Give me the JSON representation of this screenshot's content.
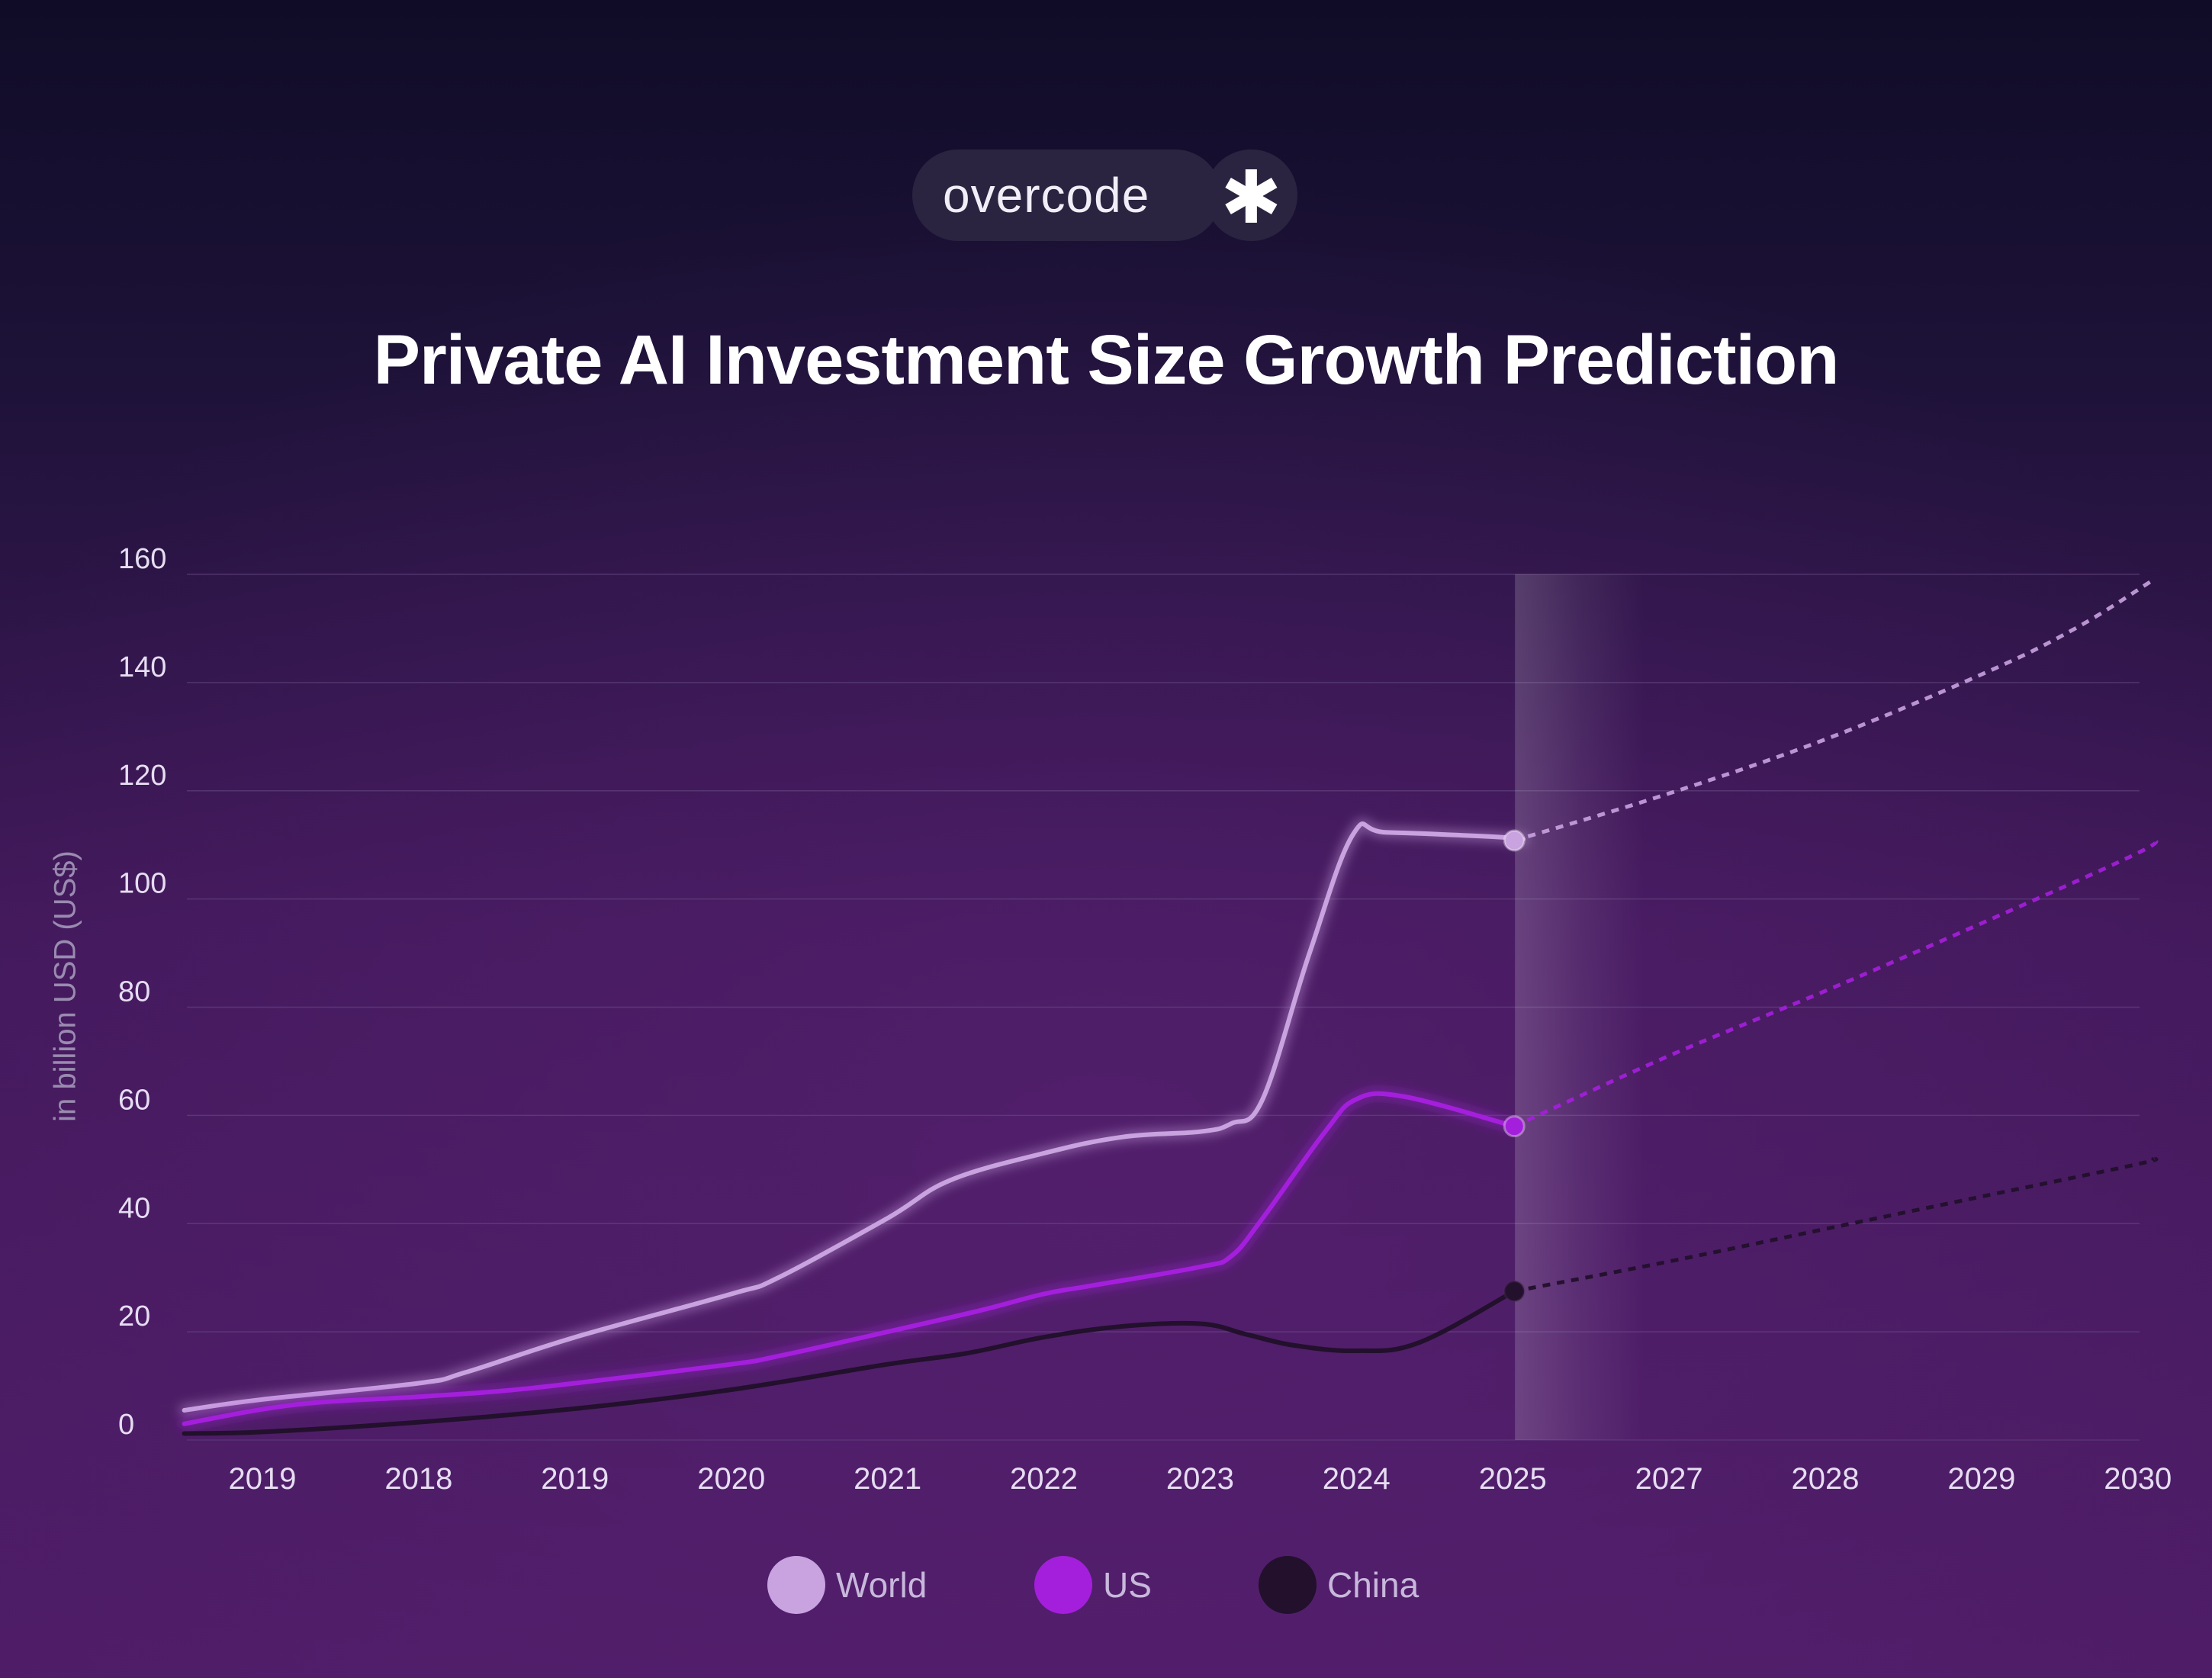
{
  "brand": {
    "name": "overcode",
    "mark": "✱"
  },
  "colors": {
    "world": "#c9a2e0",
    "us": "#a41fdc",
    "china": "#22102c",
    "grid": "#6a4f86",
    "tick": "#e6ddf2"
  },
  "legend": [
    {
      "name": "World",
      "color": "#c9a2e0"
    },
    {
      "name": "US",
      "color": "#a41fdc"
    },
    {
      "name": "China",
      "color": "#22102c"
    }
  ],
  "chart_data": {
    "type": "line",
    "title": "Private AI Investment Size Growth Prediction",
    "ylabel": "in billion USD (US$)",
    "xlabel": "",
    "categories": [
      "2019",
      "2018",
      "2019",
      "2020",
      "2021",
      "2022",
      "2023",
      "2024",
      "2025",
      "2027",
      "2028",
      "2029",
      "2030"
    ],
    "ylim": [
      0,
      160
    ],
    "yticks": [
      0,
      20,
      40,
      60,
      80,
      100,
      120,
      140,
      160
    ],
    "grid": true,
    "legend_position": "bottom",
    "highlight_category": "2025",
    "series": [
      {
        "name": "World",
        "actual": [
          [
            -0.5,
            5.5
          ],
          [
            0,
            7.5
          ],
          [
            1,
            10.5
          ],
          [
            1.3,
            12.5
          ],
          [
            2,
            19
          ],
          [
            3,
            27
          ],
          [
            3.3,
            30
          ],
          [
            4,
            41
          ],
          [
            4.4,
            48
          ],
          [
            5,
            53
          ],
          [
            5.5,
            56
          ],
          [
            6,
            57
          ],
          [
            6.2,
            58.5
          ],
          [
            6.4,
            63
          ],
          [
            6.7,
            90
          ],
          [
            6.98,
            112
          ],
          [
            7.2,
            112.3
          ],
          [
            8,
            111.3
          ],
          [
            8.01,
            110.8
          ]
        ],
        "forecast": [
          [
            8.01,
            110.8
          ],
          [
            9,
            119.5
          ],
          [
            10,
            129.5
          ],
          [
            11,
            141.5
          ],
          [
            11.6,
            150
          ],
          [
            12.1,
            159
          ]
        ]
      },
      {
        "name": "US",
        "actual": [
          [
            -0.5,
            3
          ],
          [
            0.2,
            6.5
          ],
          [
            1,
            8
          ],
          [
            1.5,
            9
          ],
          [
            2,
            10.5
          ],
          [
            3,
            14
          ],
          [
            3.3,
            15.5
          ],
          [
            4,
            20
          ],
          [
            4.6,
            24
          ],
          [
            5,
            27
          ],
          [
            5.3,
            28.5
          ],
          [
            6,
            32
          ],
          [
            6.2,
            34
          ],
          [
            6.4,
            41
          ],
          [
            6.8,
            57
          ],
          [
            7,
            63
          ],
          [
            7.3,
            63.5
          ],
          [
            8.01,
            58
          ]
        ],
        "forecast": [
          [
            8.01,
            58
          ],
          [
            9,
            71
          ],
          [
            10,
            83
          ],
          [
            11,
            95.5
          ],
          [
            12,
            108.5
          ],
          [
            12.1,
            111
          ]
        ]
      },
      {
        "name": "China",
        "actual": [
          [
            -0.5,
            1.2
          ],
          [
            0,
            1.5
          ],
          [
            1,
            3.3
          ],
          [
            2,
            5.8
          ],
          [
            3,
            9.3
          ],
          [
            4,
            14
          ],
          [
            4.5,
            16
          ],
          [
            5,
            19
          ],
          [
            5.5,
            21
          ],
          [
            6,
            21.5
          ],
          [
            6.3,
            19.5
          ],
          [
            6.6,
            17.5
          ],
          [
            7,
            16.5
          ],
          [
            7.4,
            18
          ],
          [
            8.01,
            27.5
          ]
        ],
        "forecast": [
          [
            8.01,
            27.5
          ],
          [
            9,
            33
          ],
          [
            10,
            39
          ],
          [
            11,
            45
          ],
          [
            12,
            51
          ],
          [
            12.1,
            52
          ]
        ]
      }
    ]
  }
}
